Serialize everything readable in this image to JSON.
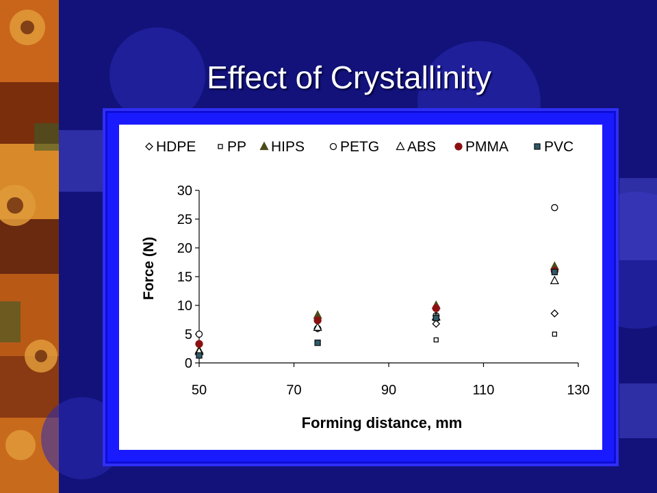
{
  "slide": {
    "title": "Effect of Crystallinity"
  },
  "colors": {
    "background": "#12127a",
    "frame": "#1a1aff",
    "plot_background": "#ffffff",
    "hips": "#4b4b1c",
    "pmma": "#8b1111",
    "pvc": "#2e5b6b"
  },
  "chart_data": {
    "type": "scatter",
    "title": "",
    "xlabel": "Forming distance, mm",
    "ylabel": "Force (N)",
    "xlim": [
      50,
      130
    ],
    "ylim": [
      0,
      30
    ],
    "xticks": [
      50,
      70,
      90,
      110,
      130
    ],
    "yticks": [
      0,
      5,
      10,
      15,
      20,
      25,
      30
    ],
    "grid": false,
    "legend_position": "top",
    "series": [
      {
        "name": "HDPE",
        "marker": "diamond-open",
        "color": "#000000",
        "points": [
          [
            50,
            1.8
          ],
          [
            75,
            6.0
          ],
          [
            100,
            6.8
          ],
          [
            125,
            8.6
          ]
        ]
      },
      {
        "name": "PP",
        "marker": "square-open",
        "color": "#000000",
        "points": [
          [
            50,
            1.3
          ],
          [
            75,
            3.5
          ],
          [
            100,
            4.0
          ],
          [
            125,
            5.0
          ]
        ]
      },
      {
        "name": "HIPS",
        "marker": "triangle-filled",
        "color": "#4b4b1c",
        "points": [
          [
            50,
            2.2
          ],
          [
            75,
            8.3
          ],
          [
            100,
            10.0
          ],
          [
            125,
            16.8
          ]
        ]
      },
      {
        "name": "PETG",
        "marker": "circle-open",
        "color": "#000000",
        "points": [
          [
            50,
            5.0
          ],
          [
            75,
            6.0
          ],
          [
            100,
            8.2
          ],
          [
            125,
            27.0
          ]
        ]
      },
      {
        "name": "ABS",
        "marker": "triangle-open",
        "color": "#000000",
        "points": [
          [
            50,
            2.0
          ],
          [
            75,
            6.2
          ],
          [
            100,
            8.0
          ],
          [
            125,
            14.3
          ]
        ]
      },
      {
        "name": "PMMA",
        "marker": "circle-filled",
        "color": "#8b1111",
        "points": [
          [
            50,
            3.3
          ],
          [
            75,
            7.4
          ],
          [
            100,
            9.5
          ],
          [
            125,
            16.0
          ]
        ]
      },
      {
        "name": "PVC",
        "marker": "square-filled",
        "color": "#2e5b6b",
        "points": [
          [
            50,
            1.3
          ],
          [
            75,
            3.5
          ],
          [
            100,
            7.8
          ],
          [
            125,
            15.8
          ]
        ]
      }
    ]
  }
}
